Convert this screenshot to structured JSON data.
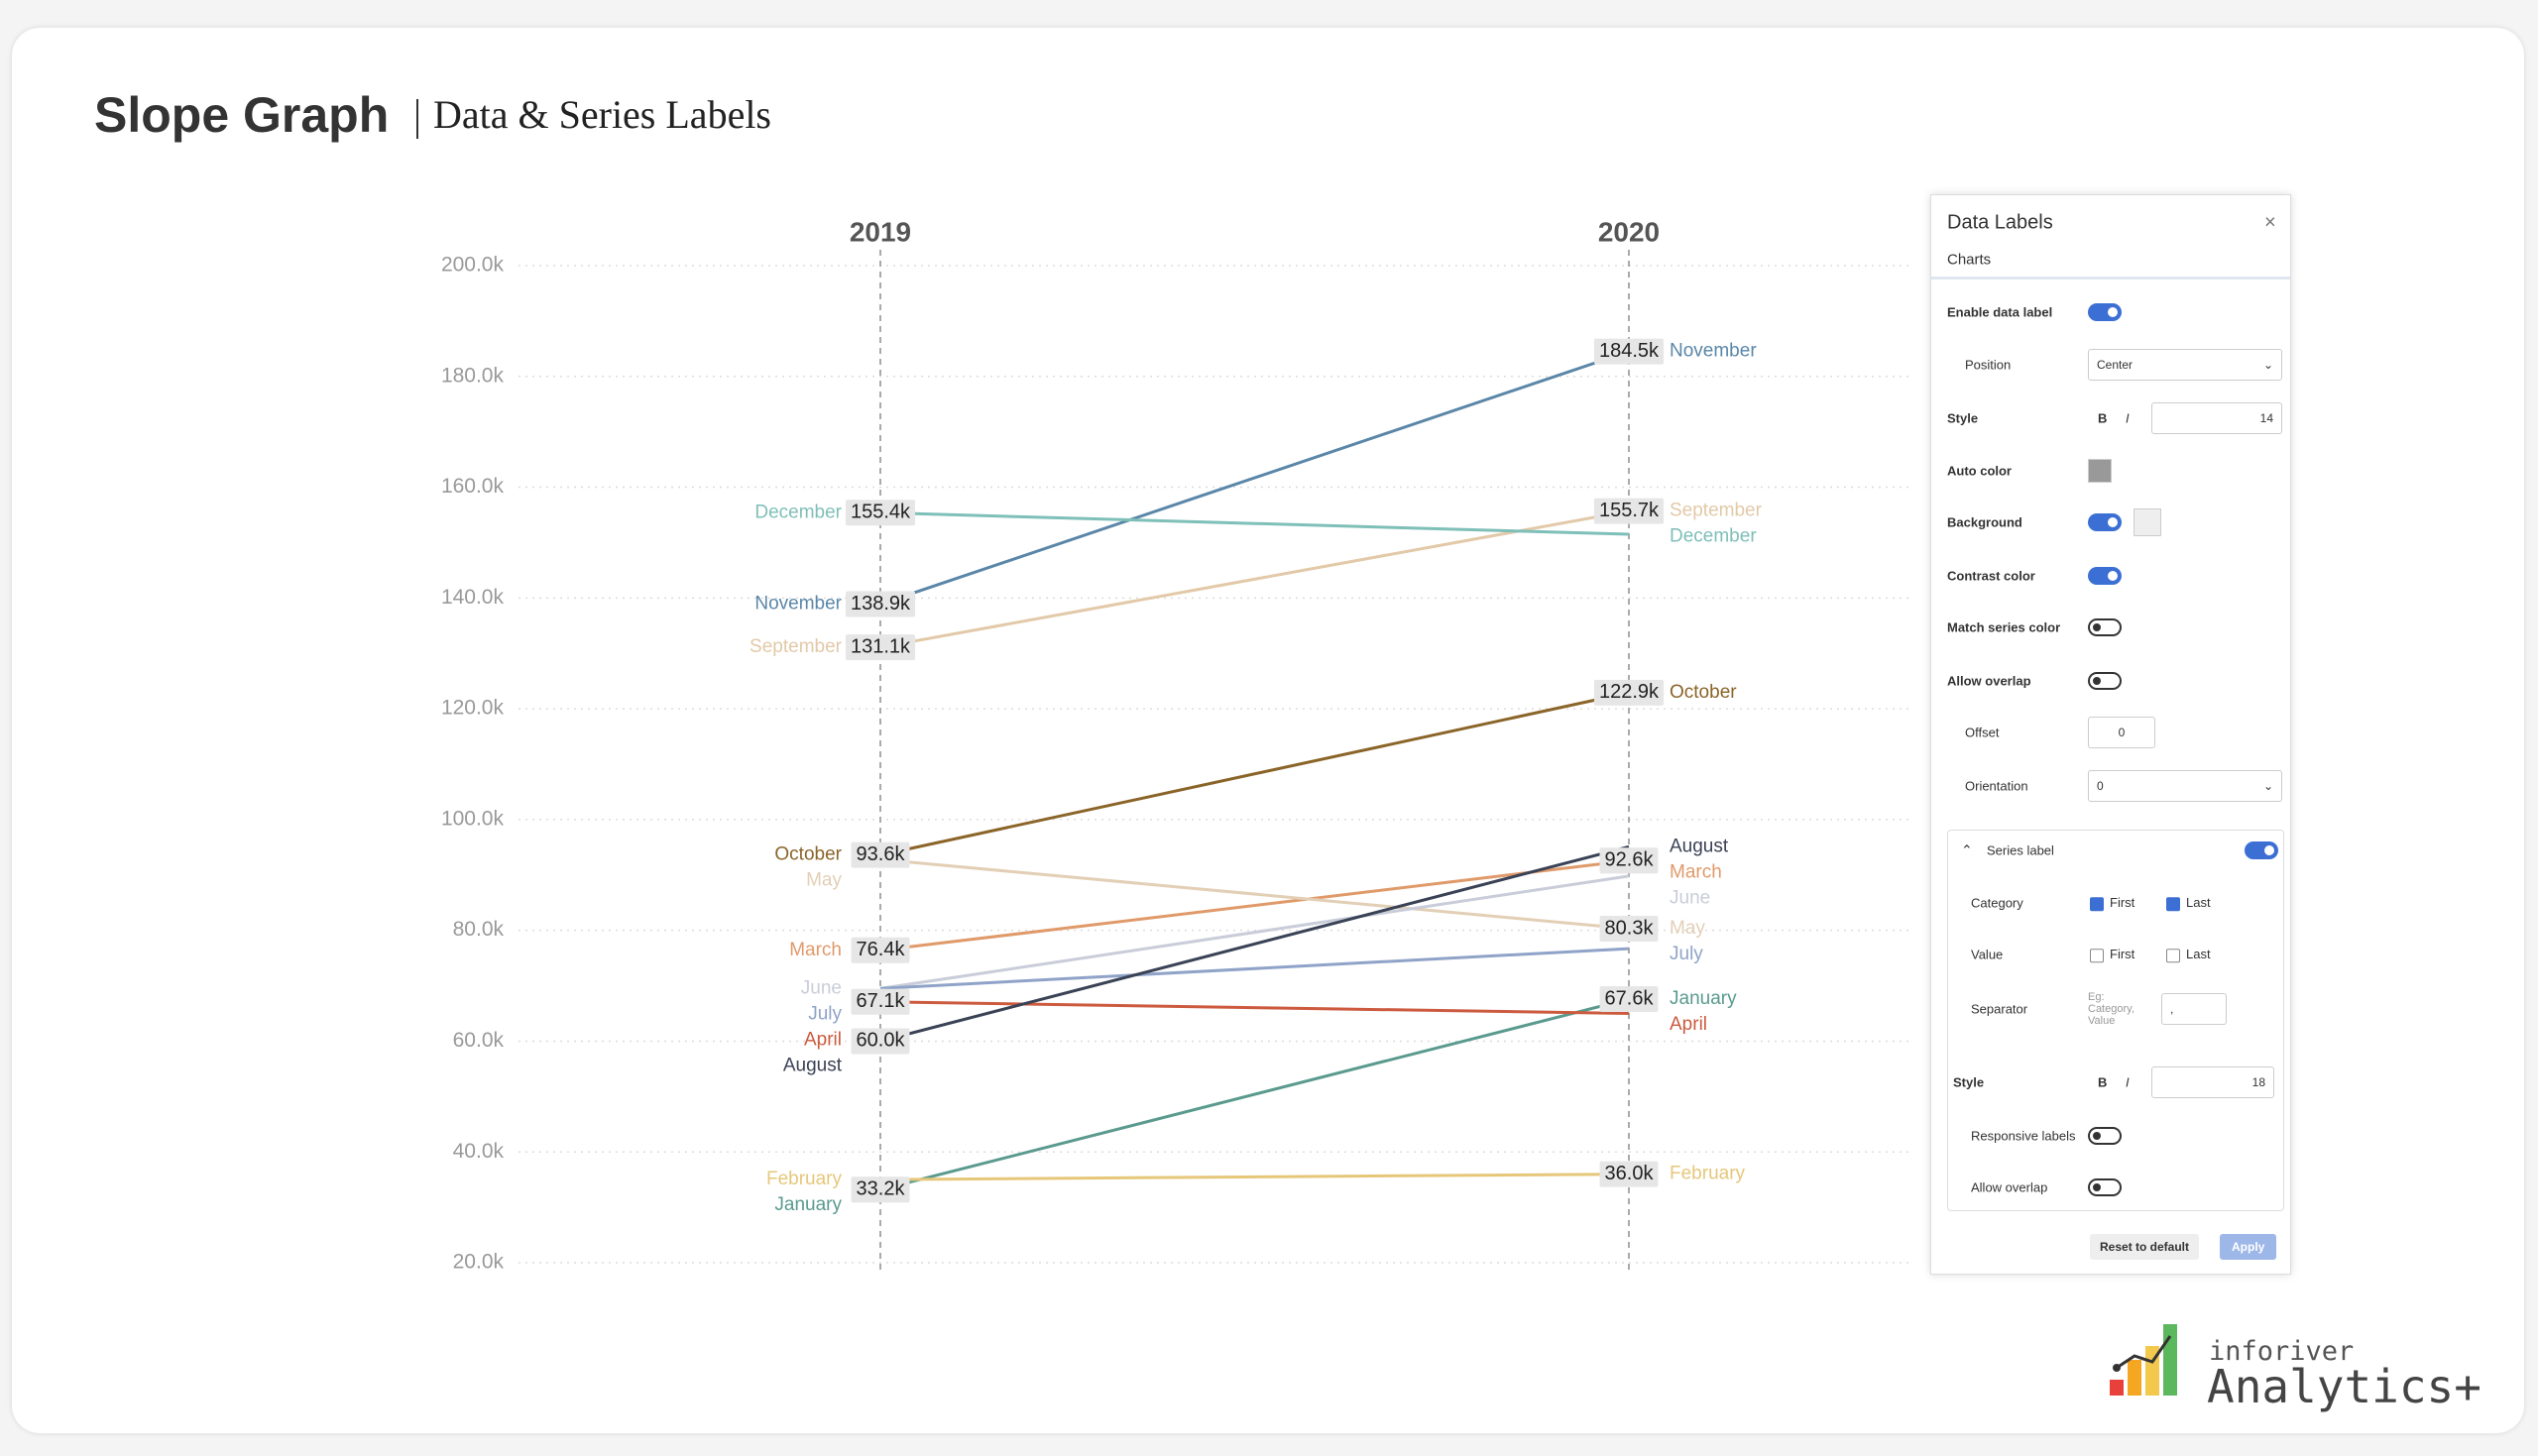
{
  "header": {
    "title": "Slope Graph",
    "subtitle": "Data & Series Labels"
  },
  "chart_data": {
    "type": "slope",
    "x": [
      "2019",
      "2020"
    ],
    "ylim": [
      20000,
      200000
    ],
    "yticks": [
      {
        "value": 20000,
        "label": "20.0k"
      },
      {
        "value": 40000,
        "label": "40.0k"
      },
      {
        "value": 60000,
        "label": "60.0k"
      },
      {
        "value": 80000,
        "label": "80.0k"
      },
      {
        "value": 100000,
        "label": "100.0k"
      },
      {
        "value": 120000,
        "label": "120.0k"
      },
      {
        "value": 140000,
        "label": "140.0k"
      },
      {
        "value": 160000,
        "label": "160.0k"
      },
      {
        "value": 180000,
        "label": "180.0k"
      },
      {
        "value": 200000,
        "label": "200.0k"
      }
    ],
    "grid": true,
    "series": [
      {
        "name": "January",
        "color": "#5a9a8e",
        "values": [
          33200,
          67600
        ],
        "value_labels": [
          "33.2k",
          "67.6k"
        ]
      },
      {
        "name": "February",
        "color": "#e6c77a",
        "values": [
          35000,
          36000
        ],
        "value_labels": [
          null,
          "36.0k"
        ]
      },
      {
        "name": "March",
        "color": "#e09a6a",
        "values": [
          76400,
          92600
        ],
        "value_labels": [
          "76.4k",
          "92.6k"
        ]
      },
      {
        "name": "April",
        "color": "#cc5a3e",
        "values": [
          67100,
          65000
        ],
        "value_labels": [
          "67.1k",
          null
        ]
      },
      {
        "name": "May",
        "color": "#e2cfb6",
        "values": [
          92800,
          80300
        ],
        "value_labels": [
          null,
          "80.3k"
        ]
      },
      {
        "name": "June",
        "color": "#c9cdd9",
        "values": [
          69500,
          89800
        ],
        "value_labels": [
          null,
          null
        ]
      },
      {
        "name": "July",
        "color": "#8fa3c8",
        "values": [
          69500,
          76700
        ],
        "value_labels": [
          null,
          null
        ]
      },
      {
        "name": "August",
        "color": "#3a4256",
        "values": [
          60000,
          95100
        ],
        "value_labels": [
          "60.0k",
          null
        ]
      },
      {
        "name": "September",
        "color": "#e2c9a8",
        "values": [
          131100,
          155700
        ],
        "value_labels": [
          "131.1k",
          "155.7k"
        ]
      },
      {
        "name": "October",
        "color": "#8a6428",
        "values": [
          93600,
          122900
        ],
        "value_labels": [
          "93.6k",
          "122.9k"
        ]
      },
      {
        "name": "November",
        "color": "#5a86a8",
        "values": [
          138900,
          184500
        ],
        "value_labels": [
          "138.9k",
          "184.5k"
        ]
      },
      {
        "name": "December",
        "color": "#7ebfb8",
        "values": [
          155400,
          151500
        ],
        "value_labels": [
          "155.4k",
          null
        ]
      }
    ]
  },
  "panel": {
    "title": "Data Labels",
    "tab": "Charts",
    "enable_label": "Enable data label",
    "position_label": "Position",
    "position_value": "Center",
    "style_label": "Style",
    "bold": "B",
    "italic": "I",
    "font_size": "14",
    "auto_color": "Auto color",
    "background": "Background",
    "contrast_color": "Contrast color",
    "match_series_color": "Match series color",
    "allow_overlap": "Allow overlap",
    "offset_label": "Offset",
    "offset_value": "0",
    "orientation_label": "Orientation",
    "orientation_value": "0",
    "series_label": "Series label",
    "category": "Category",
    "first": "First",
    "last": "Last",
    "value": "Value",
    "separator": "Separator",
    "separator_placeholder": "Eg: Category, Value",
    "separator_value": ",",
    "series_style": "Style",
    "series_font_size": "18",
    "responsive_labels": "Responsive labels",
    "series_allow_overlap": "Allow overlap",
    "reset": "Reset to default",
    "apply": "Apply"
  },
  "brand": {
    "company": "inforiver",
    "product": "Analytics+"
  }
}
